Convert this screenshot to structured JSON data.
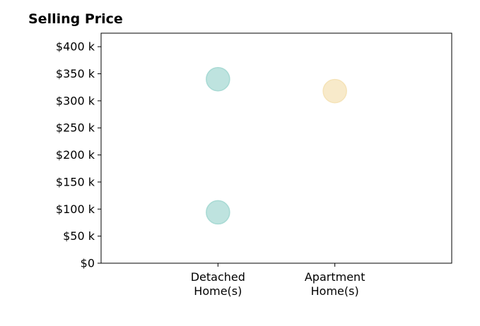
{
  "chart_data": {
    "type": "scatter",
    "title": "Selling Price",
    "categories": [
      "Detached\nHome(s)",
      "Apartment\nHome(s)"
    ],
    "y_ticks": [
      "$0",
      "$50 k",
      "$100 k",
      "$150 k",
      "$200 k",
      "$250 k",
      "$300 k",
      "$350 k",
      "$400 k"
    ],
    "ylim": [
      0,
      425000
    ],
    "xlim": [
      -1,
      2
    ],
    "grid": false,
    "points": [
      {
        "category": "Detached\nHome(s)",
        "x": 0,
        "y": 340000,
        "color": "#a8dad4"
      },
      {
        "category": "Detached\nHome(s)",
        "x": 0,
        "y": 94000,
        "color": "#a8dad4"
      },
      {
        "category": "Apartment\nHome(s)",
        "x": 1,
        "y": 318000,
        "color": "#f5e3b8"
      }
    ]
  }
}
